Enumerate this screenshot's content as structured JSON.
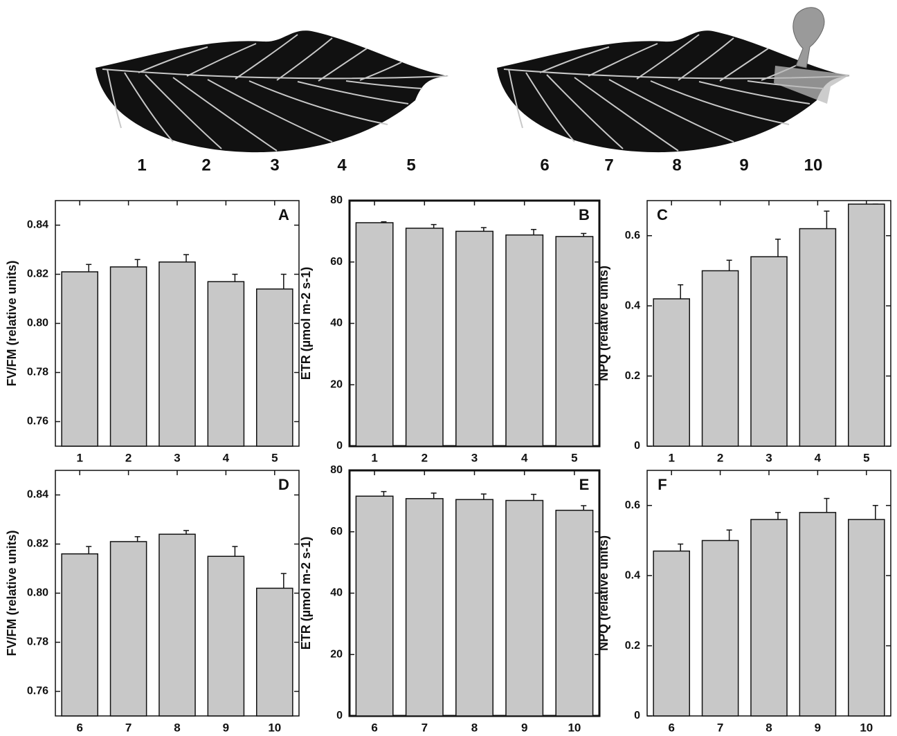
{
  "leaves": [
    {
      "labels": [
        "1",
        "2",
        "3",
        "4",
        "5"
      ]
    },
    {
      "labels": [
        "6",
        "7",
        "8",
        "9",
        "10"
      ]
    }
  ],
  "chart_data": [
    {
      "type": "bar",
      "annotation": "A",
      "ylabel": "FV/FM (relative units)",
      "color": "#c8c8c8",
      "categories": [
        "1",
        "2",
        "3",
        "4",
        "5"
      ],
      "values": [
        0.821,
        0.823,
        0.825,
        0.817,
        0.814
      ],
      "errors": [
        0.003,
        0.003,
        0.003,
        0.003,
        0.006
      ],
      "ylim": [
        0.75,
        0.85
      ],
      "yticks": [
        0.76,
        0.78,
        {
          "value": 0.8,
          "label": "0.80"
        },
        0.82,
        0.84
      ]
    },
    {
      "type": "bar",
      "annotation": "B",
      "ylabel": "ETR (µmol m-2 s-1)",
      "color": "#c8c8c8",
      "categories": [
        "1",
        "2",
        "3",
        "4",
        "5"
      ],
      "values": [
        72.8,
        71,
        70,
        68.8,
        68.3
      ],
      "errors": [
        0.3,
        1.2,
        1.2,
        1.8,
        1
      ],
      "ylim": [
        0,
        80
      ],
      "yticks": [
        0,
        20,
        40,
        60,
        80
      ]
    },
    {
      "type": "bar",
      "annotation": "C",
      "ylabel": "NPQ (relative units)",
      "color": "#c8c8c8",
      "categories": [
        "1",
        "2",
        "3",
        "4",
        "5"
      ],
      "values": [
        0.42,
        0.5,
        0.54,
        0.62,
        0.69
      ],
      "errors": [
        0.04,
        0.03,
        0.05,
        0.05,
        0
      ],
      "ylim": [
        0,
        0.7
      ],
      "yticks": [
        0,
        0.2,
        0.4,
        0.6
      ]
    },
    {
      "type": "bar",
      "annotation": "D",
      "ylabel": "FV/FM (relative units)",
      "color": "#c8c8c8",
      "categories": [
        "6",
        "7",
        "8",
        "9",
        "10"
      ],
      "values": [
        0.816,
        0.821,
        0.824,
        0.815,
        0.802
      ],
      "errors": [
        0.003,
        0.002,
        0.0015,
        0.004,
        0.006
      ],
      "ylim": [
        0.75,
        0.85
      ],
      "yticks": [
        0.76,
        0.78,
        {
          "value": 0.8,
          "label": "0.80"
        },
        0.82,
        0.84
      ]
    },
    {
      "type": "bar",
      "annotation": "E",
      "ylabel": "ETR (µmol m-2 s-1)",
      "color": "#c8c8c8",
      "categories": [
        "6",
        "7",
        "8",
        "9",
        "10"
      ],
      "values": [
        71.6,
        70.8,
        70.5,
        70.2,
        67
      ],
      "errors": [
        1.5,
        1.8,
        1.8,
        2,
        1.5
      ],
      "ylim": [
        0,
        80
      ],
      "yticks": [
        0,
        20,
        40,
        60,
        80
      ]
    },
    {
      "type": "bar",
      "annotation": "F",
      "ylabel": "NPQ (relative units)",
      "color": "#c8c8c8",
      "categories": [
        "6",
        "7",
        "8",
        "9",
        "10"
      ],
      "values": [
        0.47,
        0.5,
        0.56,
        0.58,
        0.56
      ],
      "errors": [
        0.02,
        0.03,
        0.02,
        0.04,
        0.04
      ],
      "ylim": [
        0,
        0.7
      ],
      "yticks": [
        0,
        0.2,
        0.4,
        0.6
      ]
    }
  ]
}
